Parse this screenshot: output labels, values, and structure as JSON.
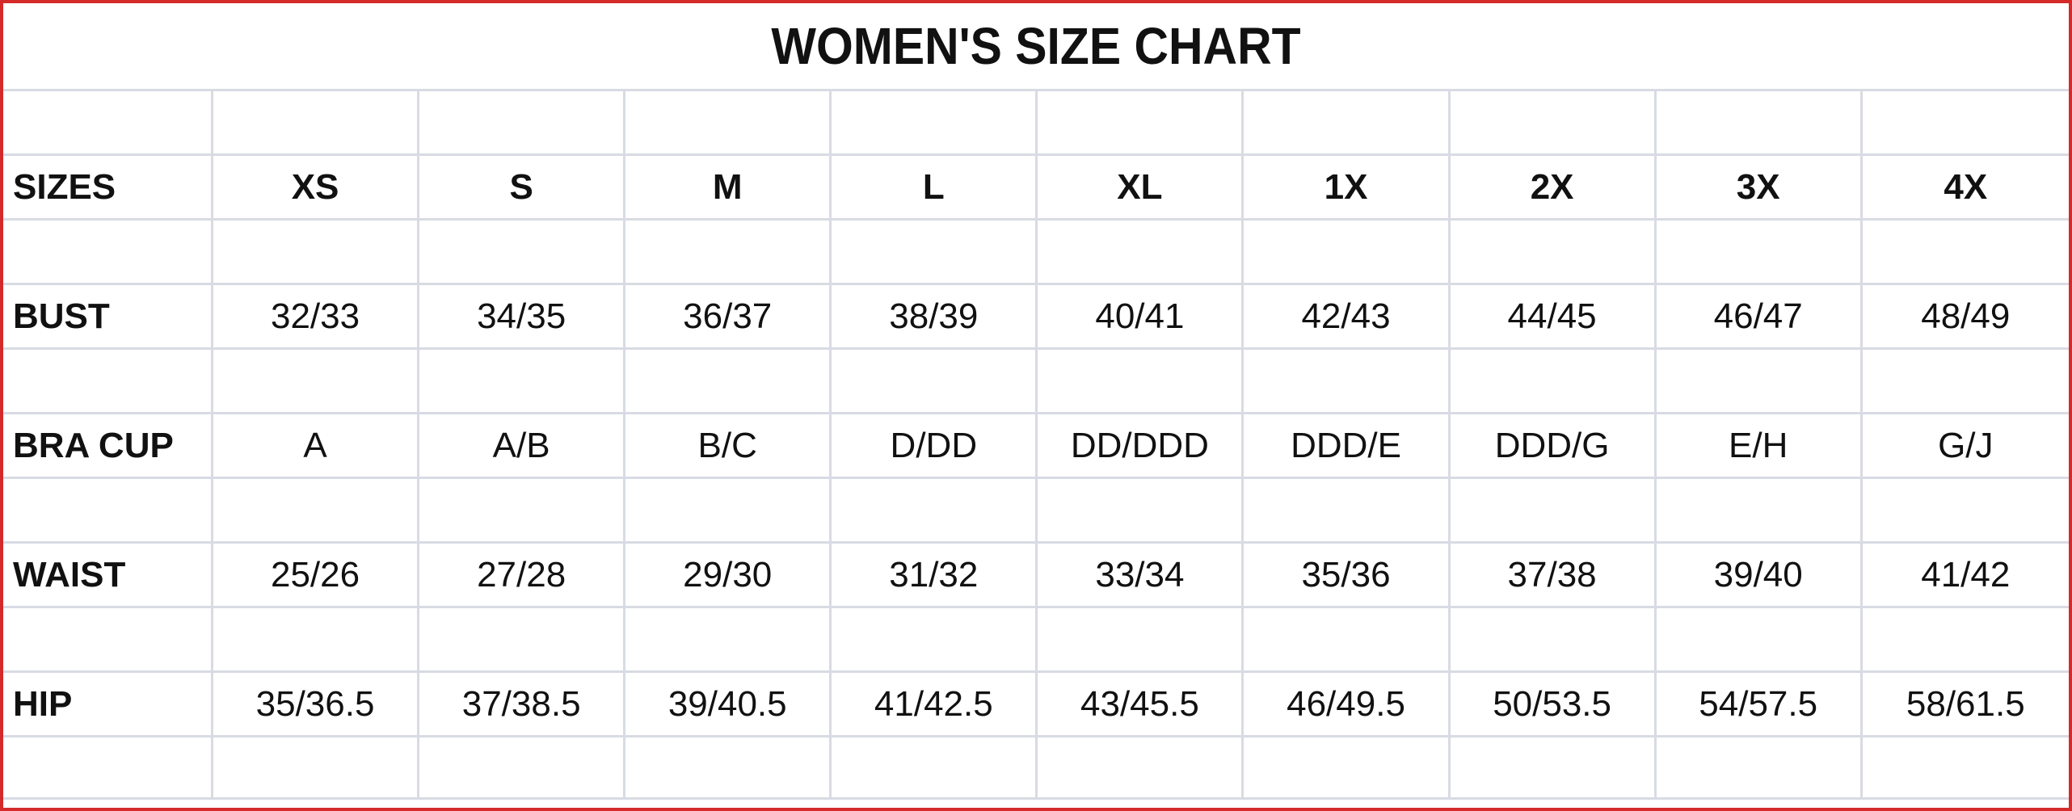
{
  "title": "WOMEN'S SIZE CHART",
  "colors": {
    "border": "#d42a2a",
    "grid": "#d8dbe3",
    "text": "#111111"
  },
  "table": {
    "header": {
      "label": "SIZES",
      "values": [
        "XS",
        "S",
        "M",
        "L",
        "XL",
        "1X",
        "2X",
        "3X",
        "4X"
      ]
    },
    "rows": [
      {
        "label": "BUST",
        "values": [
          "32/33",
          "34/35",
          "36/37",
          "38/39",
          "40/41",
          "42/43",
          "44/45",
          "46/47",
          "48/49"
        ]
      },
      {
        "label": "BRA CUP",
        "values": [
          "A",
          "A/B",
          "B/C",
          "D/DD",
          "DD/DDD",
          "DDD/E",
          "DDD/G",
          "E/H",
          "G/J"
        ]
      },
      {
        "label": "WAIST",
        "values": [
          "25/26",
          "27/28",
          "29/30",
          "31/32",
          "33/34",
          "35/36",
          "37/38",
          "39/40",
          "41/42"
        ]
      },
      {
        "label": "HIP",
        "values": [
          "35/36.5",
          "37/38.5",
          "39/40.5",
          "41/42.5",
          "43/45.5",
          "46/49.5",
          "50/53.5",
          "54/57.5",
          "58/61.5"
        ]
      }
    ]
  }
}
